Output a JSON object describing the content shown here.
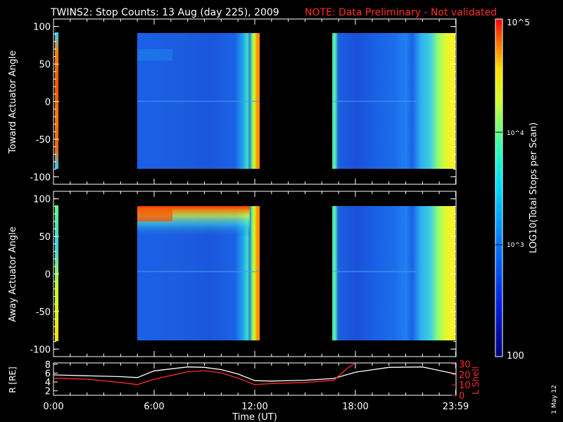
{
  "header": {
    "title": "TWINS2: Stop Counts: 13 Aug (day 225), 2009",
    "note": "NOTE: Data Preliminary - Not validated"
  },
  "panels": {
    "top_ylabel": "Toward Actuator Angle",
    "bottom_ylabel": "Away Actuator Angle",
    "y_ticks": [
      "100",
      "50",
      "0",
      "-50",
      "-100"
    ]
  },
  "colorbar": {
    "label": "LOG10(Total Stops per Scan)",
    "tick_top": "10^5",
    "tick_mid1": "10^4",
    "tick_mid2": "10^3",
    "tick_bottom": "100"
  },
  "orbit": {
    "left_label": "R [RE]",
    "right_label": "L Shell",
    "left_ticks": [
      "8",
      "6",
      "4",
      "2"
    ],
    "right_ticks": [
      "30",
      "20",
      "10",
      "0"
    ]
  },
  "xaxis": {
    "label": "Time (UT)",
    "ticks": [
      "0:00",
      "6:00",
      "12:00",
      "18:00",
      "23:59"
    ]
  },
  "side_stamp": "1 May 12",
  "chart_data": [
    {
      "type": "heatmap",
      "title": "TWINS2: Stop Counts: 13 Aug (day 225), 2009",
      "ylabel": "Toward Actuator Angle",
      "xlabel": "Time (UT)",
      "xlim": [
        0,
        24
      ],
      "ylim": [
        -110,
        110
      ],
      "color_scale": "log",
      "color_range": [
        100,
        100000
      ],
      "data_segments_hours": [
        [
          0.0,
          0.2
        ],
        [
          5.0,
          12.3
        ],
        [
          16.7,
          24.0
        ]
      ],
      "angle_range": [
        -90,
        90
      ]
    },
    {
      "type": "heatmap",
      "ylabel": "Away Actuator Angle",
      "xlabel": "Time (UT)",
      "xlim": [
        0,
        24
      ],
      "ylim": [
        -110,
        110
      ],
      "color_scale": "log",
      "color_range": [
        100,
        100000
      ],
      "data_segments_hours": [
        [
          0.0,
          0.2
        ],
        [
          5.0,
          12.3
        ],
        [
          16.7,
          24.0
        ]
      ],
      "angle_range": [
        -90,
        90
      ]
    },
    {
      "type": "line",
      "xlim": [
        0,
        24
      ],
      "series": [
        {
          "name": "R [RE]",
          "color": "#ffffff",
          "axis": "left",
          "ylim": [
            1,
            8
          ],
          "x": [
            0,
            2,
            4,
            5,
            6,
            8,
            9,
            10,
            11,
            12,
            13,
            15,
            16.7,
            18,
            20,
            22,
            24
          ],
          "y": [
            5.6,
            5.4,
            5.2,
            5.0,
            6.5,
            7.4,
            7.3,
            6.8,
            5.8,
            4.3,
            4.2,
            4.4,
            4.8,
            6.2,
            7.3,
            7.4,
            5.8
          ]
        },
        {
          "name": "L Shell",
          "color": "#ff2a2a",
          "axis": "right",
          "ylim": [
            0,
            30
          ],
          "x": [
            0,
            2,
            4,
            5,
            6,
            8,
            9,
            10,
            11,
            12,
            13,
            15,
            16.7,
            17.5,
            18
          ],
          "y": [
            16,
            15,
            12,
            10,
            15,
            22,
            23,
            21,
            16,
            10,
            11,
            12,
            14,
            25,
            35
          ]
        }
      ]
    }
  ]
}
